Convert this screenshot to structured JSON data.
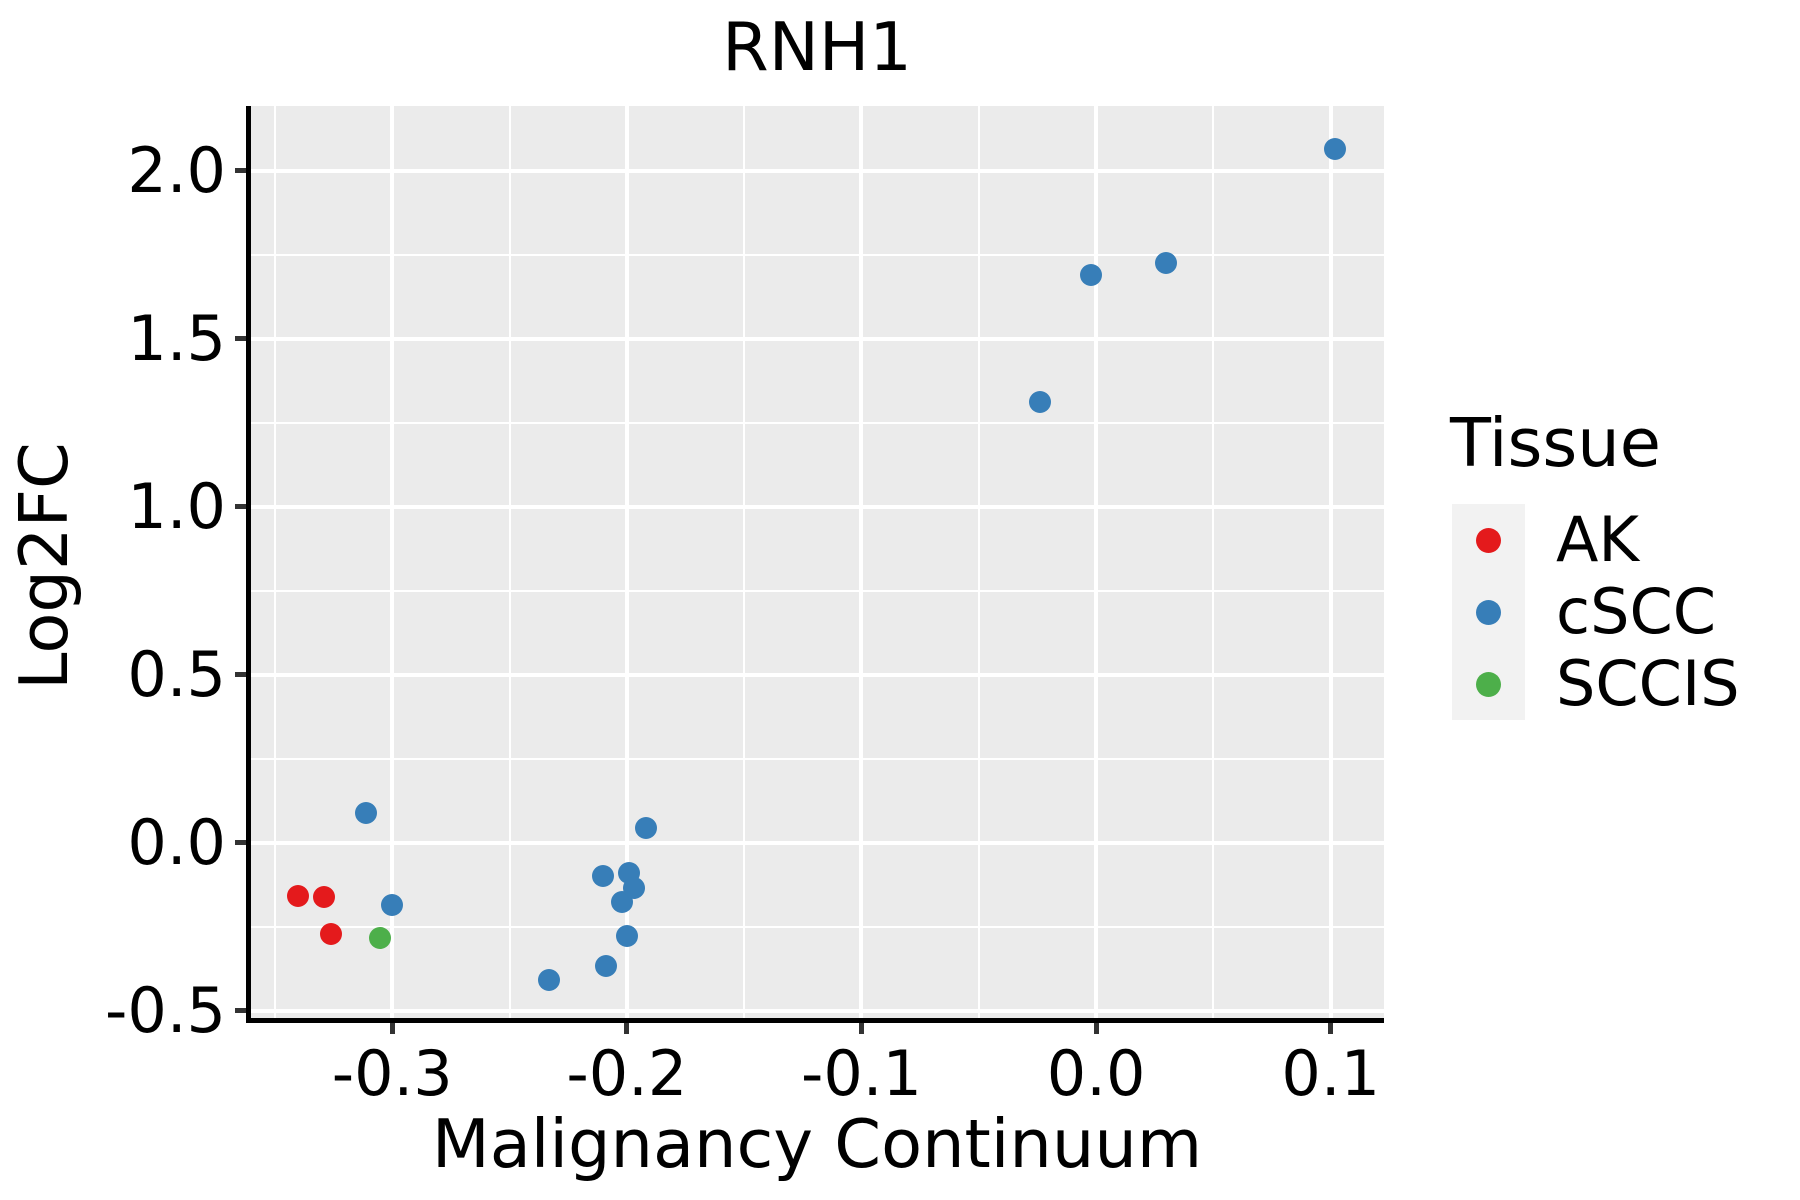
{
  "chart_data": {
    "type": "scatter",
    "title": "RNH1",
    "xlabel": "Malignancy Continuum",
    "ylabel": "Log2FC",
    "xlim": [
      -0.3606,
      0.1227
    ],
    "ylim": [
      -0.5216,
      2.1929
    ],
    "grid": "on",
    "panel_bg": "#EBEBEB",
    "grid_color": "#FFFFFF",
    "axis_color": "#000000",
    "tick_color": "#333333",
    "x_major_ticks": [
      {
        "value": -0.3,
        "label": "-0.3"
      },
      {
        "value": -0.2,
        "label": "-0.2"
      },
      {
        "value": -0.1,
        "label": "-0.1"
      },
      {
        "value": 0.0,
        "label": "0.0"
      },
      {
        "value": 0.1,
        "label": "0.1"
      }
    ],
    "x_minor_ticks": [
      -0.35,
      -0.25,
      -0.15,
      -0.05,
      0.05
    ],
    "y_major_ticks": [
      {
        "value": 2.0,
        "label": "2.0"
      },
      {
        "value": 1.5,
        "label": "1.5"
      },
      {
        "value": 1.0,
        "label": "1.0"
      },
      {
        "value": 0.5,
        "label": "0.5"
      },
      {
        "value": 0.0,
        "label": "0.0"
      },
      {
        "value": -0.5,
        "label": "-0.5"
      }
    ],
    "y_minor_ticks": [
      1.75,
      1.25,
      0.75,
      0.25,
      -0.25
    ],
    "legend": {
      "title": "Tissue",
      "position": "right",
      "key_bg": "#F2F2F2",
      "items": [
        {
          "label": "AK",
          "color": "#E41A1C"
        },
        {
          "label": "cSCC",
          "color": "#377EB8"
        },
        {
          "label": "SCCIS",
          "color": "#4DAF4A"
        }
      ]
    },
    "series": [
      {
        "name": "AK",
        "color": "#E41A1C",
        "points": [
          [
            -0.34,
            -0.158
          ],
          [
            -0.329,
            -0.161
          ],
          [
            -0.326,
            -0.271
          ]
        ]
      },
      {
        "name": "cSCC",
        "color": "#377EB8",
        "points": [
          [
            -0.311,
            0.09
          ],
          [
            -0.3,
            -0.185
          ],
          [
            -0.233,
            -0.408
          ],
          [
            -0.21,
            -0.1
          ],
          [
            -0.209,
            -0.366
          ],
          [
            -0.202,
            -0.175
          ],
          [
            -0.2,
            -0.277
          ],
          [
            -0.199,
            -0.09
          ],
          [
            -0.197,
            -0.135
          ],
          [
            -0.192,
            0.045
          ],
          [
            -0.024,
            1.312
          ],
          [
            -0.002,
            1.69
          ],
          [
            0.03,
            1.725
          ],
          [
            0.102,
            2.065
          ]
        ]
      },
      {
        "name": "SCCIS",
        "color": "#4DAF4A",
        "points": [
          [
            -0.305,
            -0.284
          ]
        ]
      }
    ]
  }
}
